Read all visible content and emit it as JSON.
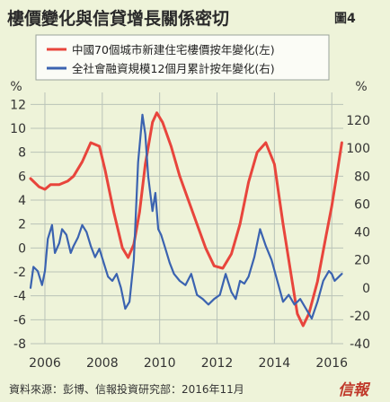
{
  "title": "樓價變化與信貸增長關係密切",
  "figure_label": "圖4",
  "footer": "資料來源：彭博、信報投資研究部：2016年11月",
  "brand": "信報",
  "colors": {
    "red": "#e8453c",
    "blue": "#3b63b0",
    "grid": "#b9c3b8",
    "background": "#eef3d9"
  },
  "chart_data": {
    "type": "line",
    "left_axis_unit": "%",
    "right_axis_unit": "%",
    "x_ticks": [
      "2006",
      "2008",
      "2010",
      "2012",
      "2014",
      "2016"
    ],
    "x_range": [
      2005.5,
      2016.4
    ],
    "y_left": {
      "range": [
        -8,
        13
      ],
      "ticks": [
        12,
        10,
        8,
        6,
        4,
        2,
        0,
        -2,
        -4,
        -6,
        -8
      ]
    },
    "y_right": {
      "range": [
        -40,
        140
      ],
      "ticks": [
        120,
        100,
        80,
        60,
        40,
        20,
        0,
        -20,
        -40
      ]
    },
    "grid": true,
    "legend_placement": "top-left",
    "series": [
      {
        "name": "中國70個城市新建住宅樓價按年變化(左)",
        "axis": "left",
        "color": "#e8453c",
        "x": [
          2005.5,
          2005.8,
          2006.0,
          2006.2,
          2006.5,
          2006.8,
          2007.0,
          2007.3,
          2007.6,
          2007.9,
          2008.1,
          2008.4,
          2008.7,
          2008.9,
          2009.1,
          2009.3,
          2009.5,
          2009.75,
          2009.9,
          2010.1,
          2010.4,
          2010.7,
          2011.0,
          2011.3,
          2011.6,
          2011.9,
          2012.2,
          2012.5,
          2012.8,
          2013.1,
          2013.4,
          2013.7,
          2014.0,
          2014.3,
          2014.6,
          2014.8,
          2015.0,
          2015.2,
          2015.5,
          2015.8,
          2016.0,
          2016.2,
          2016.35
        ],
        "y": [
          5.8,
          5.1,
          4.9,
          5.3,
          5.3,
          5.6,
          6.0,
          7.2,
          8.8,
          8.5,
          6.5,
          3.0,
          0.0,
          -0.8,
          0.3,
          3.0,
          7.0,
          10.5,
          11.3,
          10.5,
          8.5,
          6.0,
          4.0,
          2.0,
          0.0,
          -1.5,
          -1.7,
          -0.5,
          2.0,
          5.5,
          8.0,
          8.8,
          7.0,
          2.0,
          -2.5,
          -5.5,
          -6.5,
          -5.5,
          -2.8,
          1.0,
          3.5,
          6.5,
          8.8
        ]
      },
      {
        "name": "全社會融資規模12個月累計按年變化(右)",
        "axis": "right",
        "color": "#3b63b0",
        "x": [
          2005.5,
          2005.6,
          2005.75,
          2005.9,
          2006.0,
          2006.1,
          2006.25,
          2006.35,
          2006.5,
          2006.6,
          2006.75,
          2006.9,
          2007.0,
          2007.15,
          2007.3,
          2007.45,
          2007.6,
          2007.75,
          2007.9,
          2008.05,
          2008.2,
          2008.35,
          2008.5,
          2008.65,
          2008.8,
          2008.95,
          2009.1,
          2009.25,
          2009.4,
          2009.5,
          2009.6,
          2009.75,
          2009.85,
          2009.95,
          2010.05,
          2010.2,
          2010.35,
          2010.5,
          2010.7,
          2010.9,
          2011.1,
          2011.3,
          2011.5,
          2011.7,
          2011.9,
          2012.1,
          2012.3,
          2012.5,
          2012.65,
          2012.8,
          2012.95,
          2013.1,
          2013.3,
          2013.5,
          2013.7,
          2013.9,
          2014.1,
          2014.3,
          2014.5,
          2014.7,
          2014.9,
          2015.1,
          2015.3,
          2015.5,
          2015.7,
          2015.9,
          2016.0,
          2016.1,
          2016.25,
          2016.35
        ],
        "y": [
          0,
          15,
          12,
          2,
          12,
          35,
          45,
          25,
          32,
          42,
          38,
          25,
          30,
          36,
          45,
          40,
          30,
          22,
          28,
          18,
          8,
          5,
          10,
          0,
          -15,
          -10,
          20,
          90,
          124,
          110,
          80,
          55,
          68,
          42,
          38,
          28,
          18,
          10,
          5,
          2,
          10,
          -5,
          -8,
          -12,
          -8,
          -5,
          10,
          -3,
          -8,
          5,
          3,
          8,
          22,
          42,
          30,
          20,
          5,
          -10,
          -5,
          -12,
          -8,
          -15,
          -22,
          -10,
          5,
          12,
          10,
          5,
          8,
          10
        ]
      }
    ]
  }
}
